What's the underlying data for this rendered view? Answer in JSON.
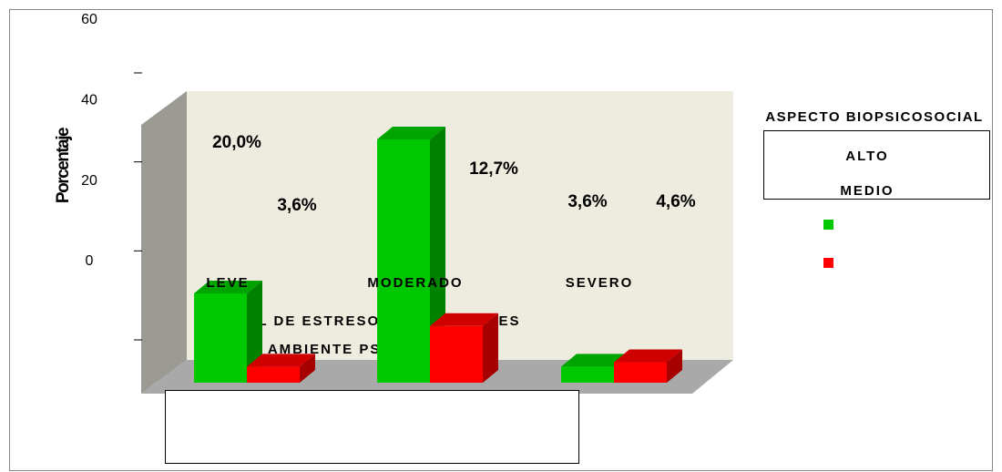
{
  "chart_data": {
    "type": "bar3d",
    "title": "NIVEL DE ESTRESORES LABORALES",
    "subtitle": "AMBIENTE PSICOLÓGICO",
    "y_label": "Porcentaje",
    "legend_title": "ASPECTO BIOPSICOSOCIAL",
    "categories": [
      "LEVE",
      "MODERADO",
      "SEVERO"
    ],
    "series": [
      {
        "name": "ALTO",
        "color": "#00c800",
        "values": [
          20.0,
          54.5,
          3.6
        ],
        "value_labels": [
          "20,0%",
          null,
          "3,6%"
        ]
      },
      {
        "name": "MEDIO",
        "color": "#ff0000",
        "values": [
          3.6,
          12.7,
          4.6
        ],
        "value_labels": [
          "3,6%",
          "12,7%",
          "4,6%"
        ]
      }
    ],
    "ylim": [
      0,
      60
    ],
    "yticks": [
      0,
      20,
      40,
      60
    ]
  }
}
